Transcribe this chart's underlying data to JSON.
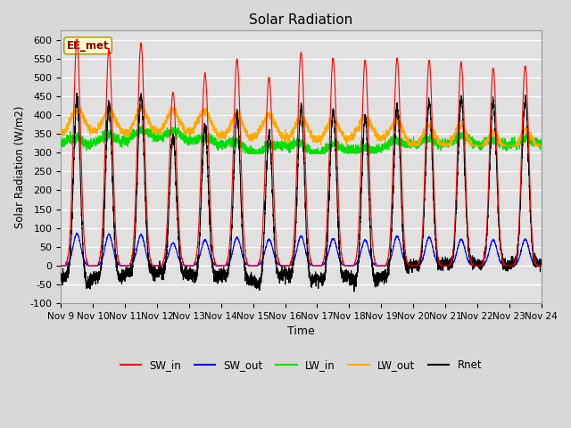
{
  "title": "Solar Radiation",
  "xlabel": "Time",
  "ylabel": "Solar Radiation (W/m2)",
  "ylim": [
    -100,
    625
  ],
  "yticks": [
    -100,
    -50,
    0,
    50,
    100,
    150,
    200,
    250,
    300,
    350,
    400,
    450,
    500,
    550,
    600
  ],
  "n_days": 15,
  "annotation": "EE_met",
  "fig_bg_color": "#d8d8d8",
  "plot_bg_color": "#e0e0e0",
  "series": {
    "SW_in": {
      "color": "#ff0000",
      "lw": 0.8
    },
    "SW_out": {
      "color": "#0000ff",
      "lw": 0.8
    },
    "LW_in": {
      "color": "#00dd00",
      "lw": 0.8
    },
    "LW_out": {
      "color": "#ffaa00",
      "lw": 0.8
    },
    "Rnet": {
      "color": "#000000",
      "lw": 0.8
    }
  },
  "sw_in_peaks": [
    600,
    575,
    590,
    460,
    510,
    548,
    500,
    565,
    550,
    545,
    550,
    545,
    540,
    523,
    530
  ],
  "sw_out_peaks": [
    85,
    83,
    82,
    60,
    68,
    75,
    70,
    78,
    72,
    68,
    78,
    75,
    70,
    68,
    70
  ],
  "lw_in_base": 330,
  "lw_out_base": 345,
  "points_per_day": 288
}
